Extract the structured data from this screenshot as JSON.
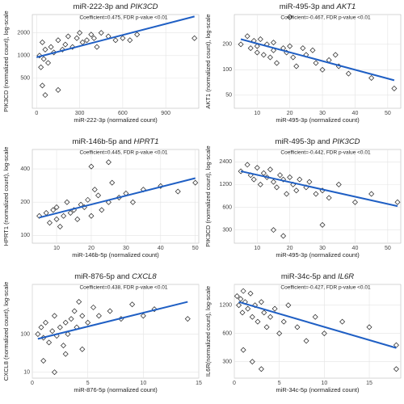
{
  "chart_data": [
    {
      "type": "scatter",
      "title": [
        "miR-222-3p and",
        "PIK3CD"
      ],
      "annotation": "Coefficient=0.475, FDR p-value <0.01",
      "xlabel": "miR-222-3p (normalized count)",
      "ylabel": "PIK3CD (normalized count), log-scale",
      "log_y": true,
      "grid": true,
      "marker_color": "#222222",
      "fit_color": "#1f5fc4",
      "xlim": [
        -30,
        1130
      ],
      "xticks": [
        0,
        300,
        600,
        900
      ],
      "ylim": [
        200,
        3500
      ],
      "yticks": [
        500,
        1000,
        2000
      ],
      "x": [
        20,
        30,
        40,
        50,
        60,
        80,
        100,
        120,
        150,
        180,
        200,
        220,
        250,
        280,
        300,
        320,
        350,
        380,
        400,
        420,
        450,
        500,
        550,
        600,
        650,
        700,
        40,
        60,
        150,
        1100
      ],
      "values": [
        1000,
        700,
        1500,
        900,
        1200,
        800,
        1300,
        1100,
        1600,
        1200,
        1400,
        1800,
        1300,
        1700,
        2000,
        1500,
        1600,
        1900,
        1700,
        1300,
        2000,
        1800,
        1600,
        1700,
        1600,
        1900,
        400,
        300,
        350,
        1700
      ],
      "fit": {
        "x": [
          0,
          1100
        ],
        "values": [
          950,
          3300
        ]
      }
    },
    {
      "type": "scatter",
      "title": [
        "miR-495-3p and",
        "AKT1"
      ],
      "annotation": "Coefficient=-0.467, FDR p-value <0.01",
      "xlabel": "miR-495-3p (normalized count)",
      "ylabel": "AKT1 (normalized count), log-scale",
      "log_y": true,
      "grid": true,
      "marker_color": "#222222",
      "fit_color": "#1f5fc4",
      "xlim": [
        3,
        54
      ],
      "xticks": [
        10,
        20,
        30,
        40,
        50
      ],
      "ylim": [
        35,
        450
      ],
      "yticks": [
        50,
        100,
        200
      ],
      "x": [
        5,
        7,
        8,
        9,
        10,
        10,
        11,
        12,
        13,
        14,
        15,
        15,
        16,
        18,
        19,
        20,
        21,
        22,
        24,
        25,
        27,
        28,
        30,
        32,
        34,
        35,
        38,
        45,
        52,
        20
      ],
      "values": [
        200,
        250,
        180,
        220,
        160,
        190,
        230,
        150,
        200,
        140,
        170,
        210,
        120,
        180,
        160,
        190,
        140,
        110,
        180,
        150,
        170,
        120,
        100,
        130,
        150,
        110,
        90,
        80,
        60,
        420
      ],
      "fit": {
        "x": [
          5,
          52
        ],
        "values": [
          230,
          75
        ]
      }
    },
    {
      "type": "scatter",
      "title": [
        "miR-146b-5p and",
        "HPRT1"
      ],
      "annotation": "Coefficient=0.445, FDR p-value <0.01",
      "xlabel": "miR-146b-5p (normalized count)",
      "ylabel": "HPRT1 (normalized count), log-scale",
      "log_y": true,
      "grid": true,
      "marker_color": "#222222",
      "fit_color": "#1f5fc4",
      "xlim": [
        3,
        51
      ],
      "xticks": [
        10,
        20,
        30,
        40,
        50
      ],
      "ylim": [
        85,
        600
      ],
      "yticks": [
        100,
        200,
        400
      ],
      "x": [
        5,
        7,
        8,
        9,
        10,
        10,
        11,
        12,
        13,
        14,
        15,
        16,
        17,
        18,
        19,
        20,
        21,
        22,
        23,
        25,
        26,
        28,
        30,
        32,
        35,
        40,
        45,
        50,
        20,
        25
      ],
      "values": [
        150,
        160,
        130,
        170,
        140,
        180,
        120,
        150,
        200,
        160,
        170,
        140,
        190,
        180,
        210,
        150,
        260,
        230,
        170,
        200,
        300,
        220,
        240,
        200,
        260,
        280,
        250,
        300,
        420,
        460
      ],
      "fit": {
        "x": [
          5,
          50
        ],
        "values": [
          145,
          330
        ]
      }
    },
    {
      "type": "scatter",
      "title": [
        "miR-495-3p and",
        "PIK3CD"
      ],
      "annotation": "Coefficient=-0.442, FDR p-value <0.01",
      "xlabel": "miR-495-3p (normalized count)",
      "ylabel": "PIK3CD (normalized count), log-scale",
      "log_y": true,
      "grid": true,
      "marker_color": "#222222",
      "fit_color": "#1f5fc4",
      "xlim": [
        3,
        54
      ],
      "xticks": [
        10,
        20,
        30,
        40,
        50
      ],
      "ylim": [
        200,
        3500
      ],
      "yticks": [
        300,
        600,
        1200,
        2400
      ],
      "x": [
        5,
        7,
        8,
        9,
        10,
        11,
        12,
        13,
        14,
        15,
        16,
        17,
        18,
        19,
        20,
        21,
        22,
        23,
        25,
        26,
        28,
        30,
        32,
        35,
        40,
        45,
        53,
        15,
        18,
        30
      ],
      "values": [
        1800,
        2200,
        1600,
        1400,
        2000,
        1200,
        1700,
        1500,
        1900,
        1300,
        1100,
        1600,
        1400,
        900,
        1500,
        1200,
        1000,
        1400,
        1100,
        1300,
        900,
        1000,
        800,
        1200,
        700,
        900,
        700,
        300,
        250,
        350
      ],
      "fit": {
        "x": [
          5,
          53
        ],
        "values": [
          1800,
          620
        ]
      }
    },
    {
      "type": "scatter",
      "title": [
        "miR-876-5p and",
        "CXCL8"
      ],
      "annotation": "Coefficient=0.438, FDR p-value <0.01",
      "xlabel": "miR-876-5p (normalized count)",
      "ylabel": "CXCL8 (normalized count), log-scale",
      "log_y": true,
      "grid": true,
      "marker_color": "#222222",
      "fit_color": "#1f5fc4",
      "xlim": [
        0,
        15
      ],
      "xticks": [
        0,
        5,
        10,
        15
      ],
      "ylim": [
        7,
        2000
      ],
      "yticks": [
        10,
        100
      ],
      "x": [
        0.5,
        0.8,
        1,
        1.2,
        1.5,
        1.8,
        2,
        2.2,
        2.5,
        2.8,
        3,
        3.2,
        3.5,
        3.8,
        4,
        4.2,
        4.5,
        5,
        5.5,
        6,
        7,
        8,
        9,
        10,
        11,
        14,
        1,
        2,
        3,
        4.5
      ],
      "values": [
        100,
        150,
        80,
        200,
        60,
        120,
        300,
        90,
        150,
        50,
        200,
        100,
        250,
        400,
        150,
        700,
        300,
        200,
        500,
        300,
        400,
        250,
        600,
        300,
        450,
        250,
        20,
        10,
        30,
        40
      ],
      "fit": {
        "x": [
          0.5,
          14
        ],
        "values": [
          75,
          700
        ]
      }
    },
    {
      "type": "scatter",
      "title": [
        "miR-34c-5p and",
        "IL6R"
      ],
      "annotation": "Coefficient=-0.427, FDR p-value <0.01",
      "xlabel": "miR-34c-5p (normalized count)",
      "ylabel": "IL6R(normalized count), log-scale",
      "log_y": true,
      "grid": true,
      "marker_color": "#222222",
      "fit_color": "#1f5fc4",
      "xlim": [
        0,
        18.5
      ],
      "xticks": [
        0,
        5,
        10,
        15
      ],
      "ylim": [
        200,
        2000
      ],
      "yticks": [
        300,
        600,
        1200
      ],
      "x": [
        0.3,
        0.5,
        0.7,
        0.9,
        1,
        1.2,
        1.5,
        1.8,
        2,
        2.3,
        2.6,
        3,
        3.3,
        3.6,
        4,
        4.5,
        5,
        5.5,
        6,
        7,
        8,
        9,
        10,
        12,
        15,
        18,
        1,
        2,
        3,
        18
      ],
      "values": [
        1500,
        1200,
        1400,
        1000,
        1700,
        1300,
        1100,
        1600,
        900,
        1200,
        800,
        1300,
        1000,
        700,
        900,
        1100,
        600,
        800,
        1200,
        700,
        500,
        900,
        600,
        800,
        700,
        450,
        400,
        300,
        250,
        250
      ],
      "fit": {
        "x": [
          0.5,
          18
        ],
        "values": [
          1300,
          420
        ]
      }
    }
  ]
}
